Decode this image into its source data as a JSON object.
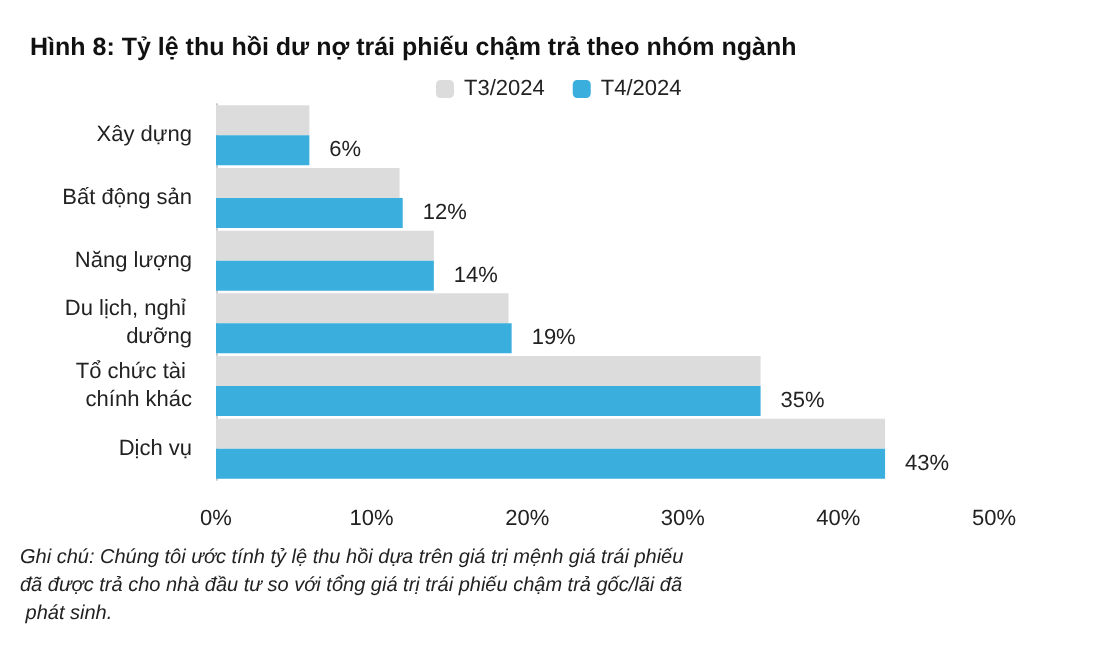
{
  "chart_data": {
    "type": "bar",
    "orientation": "horizontal",
    "title": "Hình 8: Tỷ lệ thu hồi dư nợ trái phiếu chậm trả theo nhóm ngành",
    "categories": [
      "Xây dựng",
      "Bất động sản",
      "Năng lượng",
      "Du lịch, nghỉ dưỡng",
      "Tổ chức tài chính khác",
      "Dịch vụ"
    ],
    "series": [
      {
        "name": "T3/2024",
        "color": "#dcdcdc",
        "values": [
          6,
          11.8,
          14,
          18.8,
          35,
          43
        ]
      },
      {
        "name": "T4/2024",
        "color": "#3aaedc",
        "values": [
          6,
          12,
          14,
          19,
          35,
          43
        ],
        "value_labels": [
          "6%",
          "12%",
          "14%",
          "19%",
          "35%",
          "43%"
        ]
      }
    ],
    "xlim": [
      0,
      50
    ],
    "xticks": [
      {
        "value": 0,
        "label": "0%"
      },
      {
        "value": 10,
        "label": "10%"
      },
      {
        "value": 20,
        "label": "20%"
      },
      {
        "value": 30,
        "label": "30%"
      },
      {
        "value": 40,
        "label": "40%"
      },
      {
        "value": 50,
        "label": "50%"
      }
    ],
    "grid": false,
    "legend": "top",
    "annotations": [
      "Ghi chú: Chúng tôi ước tính tỷ lệ thu hồi dựa trên giá trị mệnh giá trái phiếu đã được trả cho nhà đầu tư so với tổng giá trị trái phiếu chậm trả gốc/lãi đã phát sinh."
    ]
  }
}
